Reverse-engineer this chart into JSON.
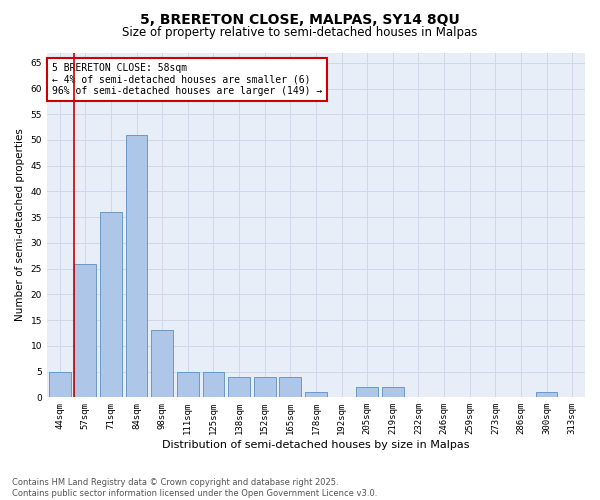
{
  "title": "5, BRERETON CLOSE, MALPAS, SY14 8QU",
  "subtitle": "Size of property relative to semi-detached houses in Malpas",
  "xlabel": "Distribution of semi-detached houses by size in Malpas",
  "ylabel": "Number of semi-detached properties",
  "categories": [
    "44sqm",
    "57sqm",
    "71sqm",
    "84sqm",
    "98sqm",
    "111sqm",
    "125sqm",
    "138sqm",
    "152sqm",
    "165sqm",
    "178sqm",
    "192sqm",
    "205sqm",
    "219sqm",
    "232sqm",
    "246sqm",
    "259sqm",
    "273sqm",
    "286sqm",
    "300sqm",
    "313sqm"
  ],
  "values": [
    5,
    26,
    36,
    51,
    13,
    5,
    5,
    4,
    4,
    4,
    1,
    0,
    2,
    2,
    0,
    0,
    0,
    0,
    0,
    1,
    0
  ],
  "bar_color": "#aec6e8",
  "bar_edgecolor": "#5a8fc2",
  "highlight_index": 1,
  "highlight_color": "#cc0000",
  "annotation_text": "5 BRERETON CLOSE: 58sqm\n← 4% of semi-detached houses are smaller (6)\n96% of semi-detached houses are larger (149) →",
  "annotation_box_color": "#ffffff",
  "annotation_box_edgecolor": "#cc0000",
  "ylim": [
    0,
    67
  ],
  "yticks": [
    0,
    5,
    10,
    15,
    20,
    25,
    30,
    35,
    40,
    45,
    50,
    55,
    60,
    65
  ],
  "grid_color": "#d0d8e8",
  "background_color": "#e8eef7",
  "footer_text": "Contains HM Land Registry data © Crown copyright and database right 2025.\nContains public sector information licensed under the Open Government Licence v3.0.",
  "title_fontsize": 10,
  "subtitle_fontsize": 8.5,
  "xlabel_fontsize": 8,
  "ylabel_fontsize": 7.5,
  "tick_fontsize": 6.5,
  "annotation_fontsize": 7,
  "footer_fontsize": 6
}
